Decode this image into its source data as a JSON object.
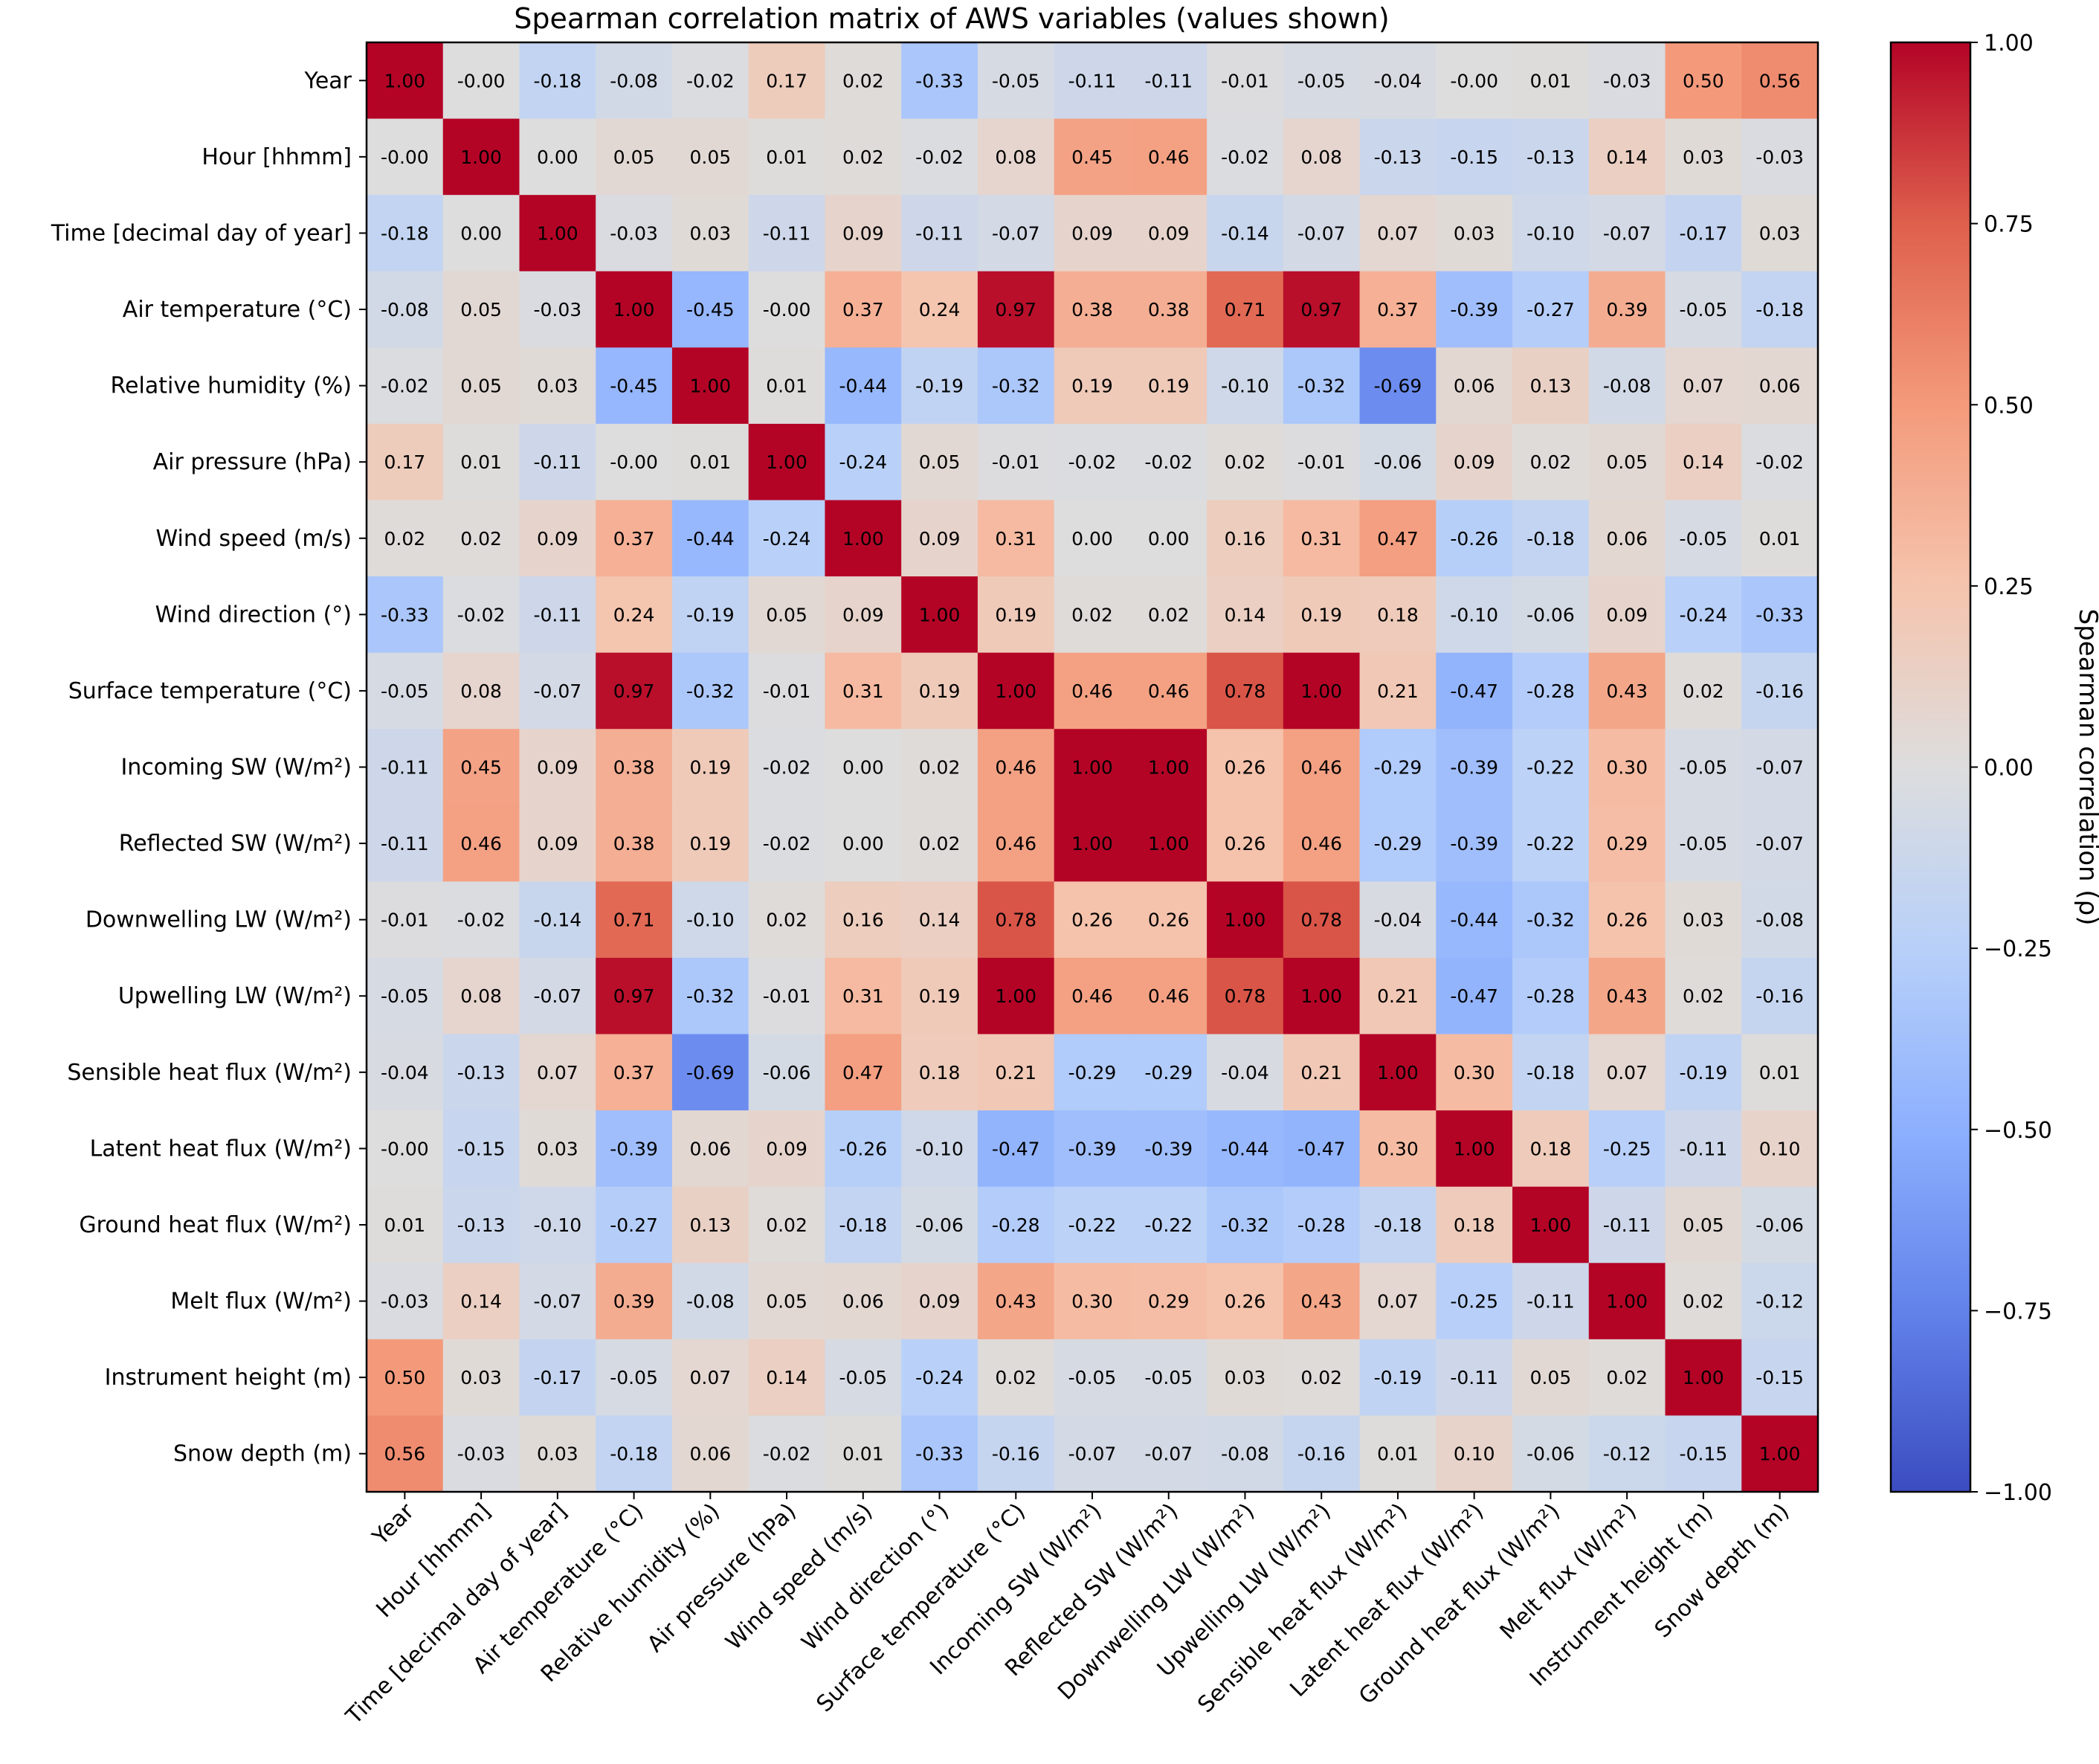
{
  "chart_data": {
    "type": "heatmap",
    "title": "Spearman correlation matrix of AWS variables (values shown)",
    "variables": [
      "Year",
      "Hour [hhmm]",
      "Time [decimal day of year]",
      "Air temperature (°C)",
      "Relative humidity (%)",
      "Air pressure (hPa)",
      "Wind speed (m/s)",
      "Wind direction (°)",
      "Surface temperature (°C)",
      "Incoming SW (W/m²)",
      "Reflected SW (W/m²)",
      "Downwelling LW (W/m²)",
      "Upwelling LW (W/m²)",
      "Sensible heat flux (W/m²)",
      "Latent heat flux (W/m²)",
      "Ground heat flux (W/m²)",
      "Melt flux (W/m²)",
      "Instrument height (m)",
      "Snow depth (m)"
    ],
    "values": [
      [
        "1.00",
        "-0.00",
        "-0.18",
        "-0.08",
        "-0.02",
        "0.17",
        "0.02",
        "-0.33",
        "-0.05",
        "-0.11",
        "-0.11",
        "-0.01",
        "-0.05",
        "-0.04",
        "-0.00",
        "0.01",
        "-0.03",
        "0.50",
        "0.56"
      ],
      [
        "-0.00",
        "1.00",
        "0.00",
        "0.05",
        "0.05",
        "0.01",
        "0.02",
        "-0.02",
        "0.08",
        "0.45",
        "0.46",
        "-0.02",
        "0.08",
        "-0.13",
        "-0.15",
        "-0.13",
        "0.14",
        "0.03",
        "-0.03"
      ],
      [
        "-0.18",
        "0.00",
        "1.00",
        "-0.03",
        "0.03",
        "-0.11",
        "0.09",
        "-0.11",
        "-0.07",
        "0.09",
        "0.09",
        "-0.14",
        "-0.07",
        "0.07",
        "0.03",
        "-0.10",
        "-0.07",
        "-0.17",
        "0.03"
      ],
      [
        "-0.08",
        "0.05",
        "-0.03",
        "1.00",
        "-0.45",
        "-0.00",
        "0.37",
        "0.24",
        "0.97",
        "0.38",
        "0.38",
        "0.71",
        "0.97",
        "0.37",
        "-0.39",
        "-0.27",
        "0.39",
        "-0.05",
        "-0.18"
      ],
      [
        "-0.02",
        "0.05",
        "0.03",
        "-0.45",
        "1.00",
        "0.01",
        "-0.44",
        "-0.19",
        "-0.32",
        "0.19",
        "0.19",
        "-0.10",
        "-0.32",
        "-0.69",
        "0.06",
        "0.13",
        "-0.08",
        "0.07",
        "0.06"
      ],
      [
        "0.17",
        "0.01",
        "-0.11",
        "-0.00",
        "0.01",
        "1.00",
        "-0.24",
        "0.05",
        "-0.01",
        "-0.02",
        "-0.02",
        "0.02",
        "-0.01",
        "-0.06",
        "0.09",
        "0.02",
        "0.05",
        "0.14",
        "-0.02"
      ],
      [
        "0.02",
        "0.02",
        "0.09",
        "0.37",
        "-0.44",
        "-0.24",
        "1.00",
        "0.09",
        "0.31",
        "0.00",
        "0.00",
        "0.16",
        "0.31",
        "0.47",
        "-0.26",
        "-0.18",
        "0.06",
        "-0.05",
        "0.01"
      ],
      [
        "-0.33",
        "-0.02",
        "-0.11",
        "0.24",
        "-0.19",
        "0.05",
        "0.09",
        "1.00",
        "0.19",
        "0.02",
        "0.02",
        "0.14",
        "0.19",
        "0.18",
        "-0.10",
        "-0.06",
        "0.09",
        "-0.24",
        "-0.33"
      ],
      [
        "-0.05",
        "0.08",
        "-0.07",
        "0.97",
        "-0.32",
        "-0.01",
        "0.31",
        "0.19",
        "1.00",
        "0.46",
        "0.46",
        "0.78",
        "1.00",
        "0.21",
        "-0.47",
        "-0.28",
        "0.43",
        "0.02",
        "-0.16"
      ],
      [
        "-0.11",
        "0.45",
        "0.09",
        "0.38",
        "0.19",
        "-0.02",
        "0.00",
        "0.02",
        "0.46",
        "1.00",
        "1.00",
        "0.26",
        "0.46",
        "-0.29",
        "-0.39",
        "-0.22",
        "0.30",
        "-0.05",
        "-0.07"
      ],
      [
        "-0.11",
        "0.46",
        "0.09",
        "0.38",
        "0.19",
        "-0.02",
        "0.00",
        "0.02",
        "0.46",
        "1.00",
        "1.00",
        "0.26",
        "0.46",
        "-0.29",
        "-0.39",
        "-0.22",
        "0.29",
        "-0.05",
        "-0.07"
      ],
      [
        "-0.01",
        "-0.02",
        "-0.14",
        "0.71",
        "-0.10",
        "0.02",
        "0.16",
        "0.14",
        "0.78",
        "0.26",
        "0.26",
        "1.00",
        "0.78",
        "-0.04",
        "-0.44",
        "-0.32",
        "0.26",
        "0.03",
        "-0.08"
      ],
      [
        "-0.05",
        "0.08",
        "-0.07",
        "0.97",
        "-0.32",
        "-0.01",
        "0.31",
        "0.19",
        "1.00",
        "0.46",
        "0.46",
        "0.78",
        "1.00",
        "0.21",
        "-0.47",
        "-0.28",
        "0.43",
        "0.02",
        "-0.16"
      ],
      [
        "-0.04",
        "-0.13",
        "0.07",
        "0.37",
        "-0.69",
        "-0.06",
        "0.47",
        "0.18",
        "0.21",
        "-0.29",
        "-0.29",
        "-0.04",
        "0.21",
        "1.00",
        "0.30",
        "-0.18",
        "0.07",
        "-0.19",
        "0.01"
      ],
      [
        "-0.00",
        "-0.15",
        "0.03",
        "-0.39",
        "0.06",
        "0.09",
        "-0.26",
        "-0.10",
        "-0.47",
        "-0.39",
        "-0.39",
        "-0.44",
        "-0.47",
        "0.30",
        "1.00",
        "0.18",
        "-0.25",
        "-0.11",
        "0.10"
      ],
      [
        "0.01",
        "-0.13",
        "-0.10",
        "-0.27",
        "0.13",
        "0.02",
        "-0.18",
        "-0.06",
        "-0.28",
        "-0.22",
        "-0.22",
        "-0.32",
        "-0.28",
        "-0.18",
        "0.18",
        "1.00",
        "-0.11",
        "0.05",
        "-0.06"
      ],
      [
        "-0.03",
        "0.14",
        "-0.07",
        "0.39",
        "-0.08",
        "0.05",
        "0.06",
        "0.09",
        "0.43",
        "0.30",
        "0.29",
        "0.26",
        "0.43",
        "0.07",
        "-0.25",
        "-0.11",
        "1.00",
        "0.02",
        "-0.12"
      ],
      [
        "0.50",
        "0.03",
        "-0.17",
        "-0.05",
        "0.07",
        "0.14",
        "-0.05",
        "-0.24",
        "0.02",
        "-0.05",
        "-0.05",
        "0.03",
        "0.02",
        "-0.19",
        "-0.11",
        "0.05",
        "0.02",
        "1.00",
        "-0.15"
      ],
      [
        "0.56",
        "-0.03",
        "0.03",
        "-0.18",
        "0.06",
        "-0.02",
        "0.01",
        "-0.33",
        "-0.16",
        "-0.07",
        "-0.07",
        "-0.08",
        "-0.16",
        "0.01",
        "0.10",
        "-0.06",
        "-0.12",
        "-0.15",
        "1.00"
      ]
    ],
    "colormap": "coolwarm",
    "vmin": -1.0,
    "vmax": 1.0,
    "colorbar": {
      "label": "Spearman correlation (ρ)",
      "ticks": [
        "1.00",
        "0.75",
        "0.50",
        "0.25",
        "0.00",
        "−0.25",
        "−0.50",
        "−0.75",
        "−1.00"
      ],
      "tick_values": [
        1.0,
        0.75,
        0.5,
        0.25,
        0.0,
        -0.25,
        -0.5,
        -0.75,
        -1.0
      ],
      "placement": "right"
    },
    "colors": {
      "low": "#3b4cc0",
      "mid": "#dddddd",
      "high": "#b40426"
    }
  }
}
